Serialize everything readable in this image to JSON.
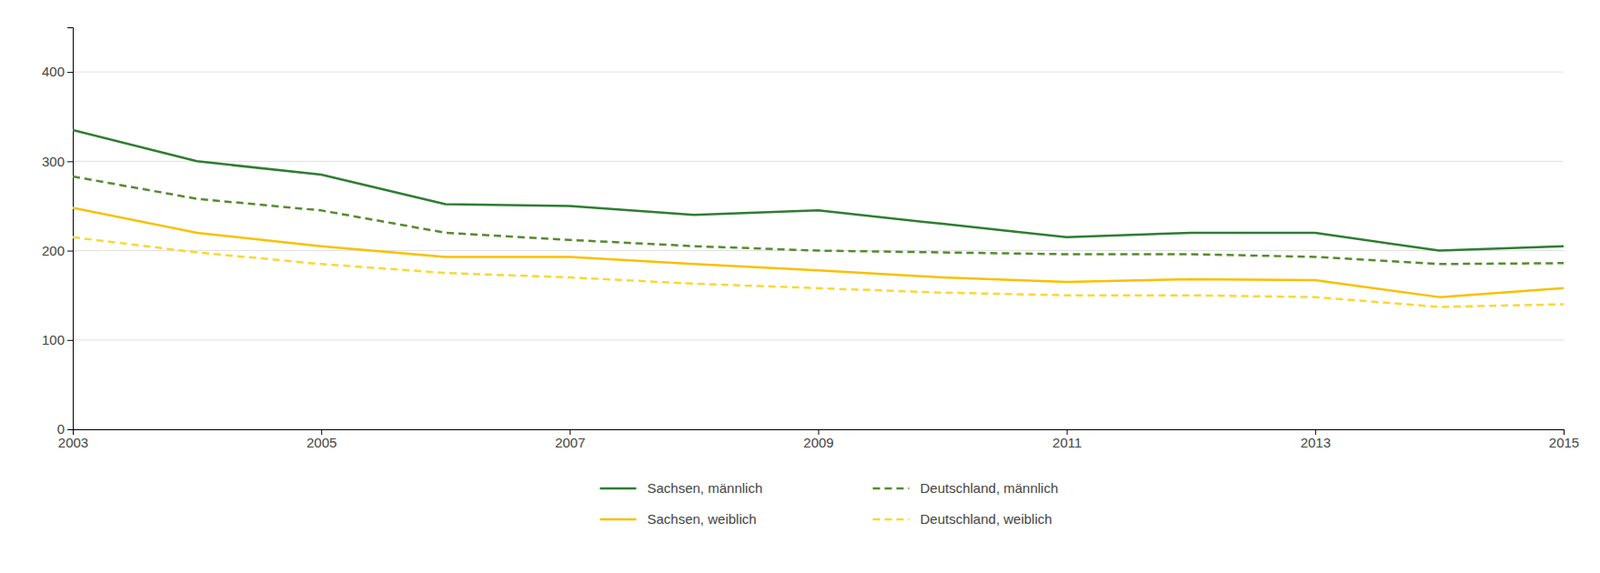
{
  "chart_data": {
    "type": "line",
    "x": [
      2003,
      2004,
      2005,
      2006,
      2007,
      2008,
      2009,
      2010,
      2011,
      2012,
      2013,
      2014,
      2015
    ],
    "series": [
      {
        "name": "Sachsen, männlich",
        "color": "#2e7d32",
        "line_style": "solid",
        "values": [
          335,
          300,
          285,
          252,
          250,
          240,
          245,
          230,
          215,
          220,
          220,
          200,
          205
        ]
      },
      {
        "name": "Deutschland, männlich",
        "color": "#558b2f",
        "line_style": "dashed",
        "values": [
          283,
          258,
          245,
          220,
          212,
          205,
          200,
          198,
          196,
          196,
          193,
          185,
          186
        ]
      },
      {
        "name": "Sachsen, weiblich",
        "color": "#f9c000",
        "line_style": "solid",
        "values": [
          248,
          220,
          205,
          193,
          193,
          185,
          178,
          170,
          165,
          168,
          167,
          148,
          158
        ]
      },
      {
        "name": "Deutschland, weiblich",
        "color": "#f9d835",
        "line_style": "dashed",
        "values": [
          215,
          198,
          185,
          175,
          170,
          163,
          158,
          153,
          150,
          150,
          148,
          137,
          140
        ]
      }
    ],
    "xlim": [
      2003,
      2015
    ],
    "xticks": [
      2003,
      2005,
      2007,
      2009,
      2011,
      2013,
      2015
    ],
    "ylim": [
      0,
      450
    ],
    "yticks": [
      0,
      100,
      200,
      300,
      400
    ],
    "grid": true,
    "legend": "bottom"
  }
}
